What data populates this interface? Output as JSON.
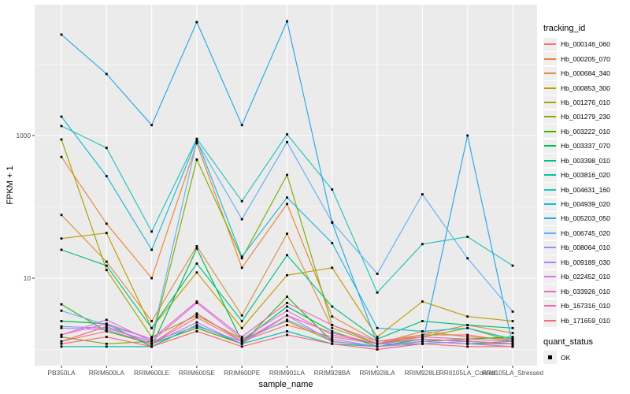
{
  "axes": {
    "x_title": "sample_name",
    "y_title": "FPKM + 1"
  },
  "legend": {
    "tracking_title": "tracking_id",
    "quant_title": "quant_status",
    "quant_label": "OK"
  },
  "chart_data": {
    "type": "line",
    "title": "",
    "xlabel": "sample_name",
    "ylabel": "FPKM + 1",
    "y_scale": "log10",
    "legend_position": "right",
    "grid": true,
    "panel_bg": "#EBEBEB",
    "grid_color": "#FFFFFF",
    "point_color": "#000000",
    "tick_color": "#333333",
    "tick_label_color": "#4D4D4D",
    "ylim": [
      0.58,
      68000
    ],
    "y_ticks": [
      {
        "label": "1000",
        "value": 1000
      },
      {
        "label": "10",
        "value": 10
      }
    ],
    "y_minor_gridlines": [
      1,
      100,
      10000
    ],
    "quant_status_values": [
      "OK"
    ],
    "categories": [
      "PB350LA",
      "RRIM600LA",
      "RRIM600LE",
      "RRIM600SE",
      "RRIM600PE",
      "RRIM901LA",
      "RRIM928BA",
      "RRIM928LA",
      "RRIM928LE",
      "RRII105LA_Control",
      "RRII105LA_Stressed"
    ],
    "series": [
      {
        "name": "Hb_000146_060",
        "color": "#F8766D",
        "values": [
          1.3,
          1.8,
          1.2,
          2.8,
          1.3,
          2.2,
          1.5,
          1.2,
          1.6,
          1.6,
          1.3
        ]
      },
      {
        "name": "Hb_000205_070",
        "color": "#EC8237",
        "values": [
          500,
          58,
          10,
          780,
          14,
          110,
          2.9,
          1.3,
          1.6,
          2.2,
          1.7
        ]
      },
      {
        "name": "Hb_000684_340",
        "color": "#D89048",
        "values": [
          77,
          17,
          2.5,
          28,
          3.0,
          42,
          2.0,
          1.2,
          1.8,
          1.5,
          1.4
        ]
      },
      {
        "name": "Hb_000853_300",
        "color": "#C49A00",
        "values": [
          36,
          43,
          2.0,
          12,
          2.0,
          11,
          14,
          1.5,
          4.7,
          2.9,
          2.5
        ]
      },
      {
        "name": "Hb_001276_010",
        "color": "#A3A500",
        "values": [
          880,
          13,
          1.5,
          3.0,
          1.4,
          2.5,
          1.3,
          1.1,
          1.3,
          1.2,
          1.2
        ]
      },
      {
        "name": "Hb_001279_230",
        "color": "#7CAE00",
        "values": [
          1.5,
          1.2,
          1.3,
          460,
          19,
          280,
          2.2,
          1.2,
          1.5,
          2.0,
          1.3
        ]
      },
      {
        "name": "Hb_003222_010",
        "color": "#39B600",
        "values": [
          4.3,
          1.8,
          1.2,
          2.0,
          1.2,
          5.5,
          1.3,
          1.1,
          1.3,
          1.4,
          1.5
        ]
      },
      {
        "name": "Hb_003337_070",
        "color": "#00BB4E",
        "values": [
          2.5,
          2.3,
          1.1,
          26,
          1.3,
          4.0,
          1.8,
          1.1,
          1.4,
          1.3,
          1.2
        ]
      },
      {
        "name": "Hb_003398_010",
        "color": "#00BF7D",
        "values": [
          25,
          15,
          2.0,
          16,
          2.5,
          21,
          4.0,
          1.4,
          2.5,
          2.2,
          2.0
        ]
      },
      {
        "name": "Hb_003816_020",
        "color": "#00C1A7",
        "values": [
          1.1,
          1.1,
          1.1,
          2.2,
          1.2,
          1.8,
          1.2,
          1.1,
          1.3,
          1.2,
          1.3
        ]
      },
      {
        "name": "Hb_004631_160",
        "color": "#22C4BE",
        "values": [
          1360,
          670,
          45,
          900,
          120,
          1040,
          175,
          6.3,
          30,
          38,
          15
        ]
      },
      {
        "name": "Hb_004939_020",
        "color": "#1FB6D9",
        "values": [
          1840,
          270,
          25,
          870,
          20,
          135,
          31,
          2.0,
          1.8,
          2.0,
          1.4
        ]
      },
      {
        "name": "Hb_005203_050",
        "color": "#2BA7E6",
        "values": [
          26000,
          7300,
          1400,
          39000,
          1400,
          40000,
          60,
          1.2,
          1.2,
          1000,
          1.15
        ]
      },
      {
        "name": "Hb_006745_020",
        "color": "#64AFF2",
        "values": [
          3.5,
          2.2,
          1.4,
          830,
          67,
          810,
          61,
          11.5,
          150,
          19,
          3.4
        ]
      },
      {
        "name": "Hb_008064_010",
        "color": "#8E95F5",
        "values": [
          2.1,
          2.0,
          1.3,
          2.1,
          1.3,
          2.6,
          1.4,
          1.1,
          1.2,
          1.3,
          1.2
        ]
      },
      {
        "name": "Hb_009189_030",
        "color": "#B083EE",
        "values": [
          2.0,
          1.9,
          1.2,
          2.4,
          1.2,
          3.0,
          1.3,
          1.1,
          1.3,
          1.2,
          1.1
        ]
      },
      {
        "name": "Hb_022452_010",
        "color": "#D678E3",
        "values": [
          1.6,
          2.6,
          1.3,
          4.5,
          1.4,
          3.5,
          1.6,
          1.2,
          1.4,
          1.3,
          1.2
        ]
      },
      {
        "name": "Hb_033926_010",
        "color": "#EC67C9",
        "values": [
          1.6,
          2.3,
          1.4,
          4.7,
          1.5,
          4.5,
          2.2,
          1.3,
          1.5,
          1.4,
          1.3
        ]
      },
      {
        "name": "Hb_167316_010",
        "color": "#F763AC",
        "values": [
          1.3,
          2.1,
          1.2,
          3.2,
          1.3,
          3.0,
          1.7,
          1.2,
          1.4,
          1.3,
          1.2
        ]
      },
      {
        "name": "Hb_171659_010",
        "color": "#FB6476",
        "values": [
          1.2,
          1.5,
          1.1,
          1.8,
          1.1,
          1.6,
          1.2,
          1.0,
          1.2,
          1.1,
          1.1
        ]
      }
    ]
  }
}
